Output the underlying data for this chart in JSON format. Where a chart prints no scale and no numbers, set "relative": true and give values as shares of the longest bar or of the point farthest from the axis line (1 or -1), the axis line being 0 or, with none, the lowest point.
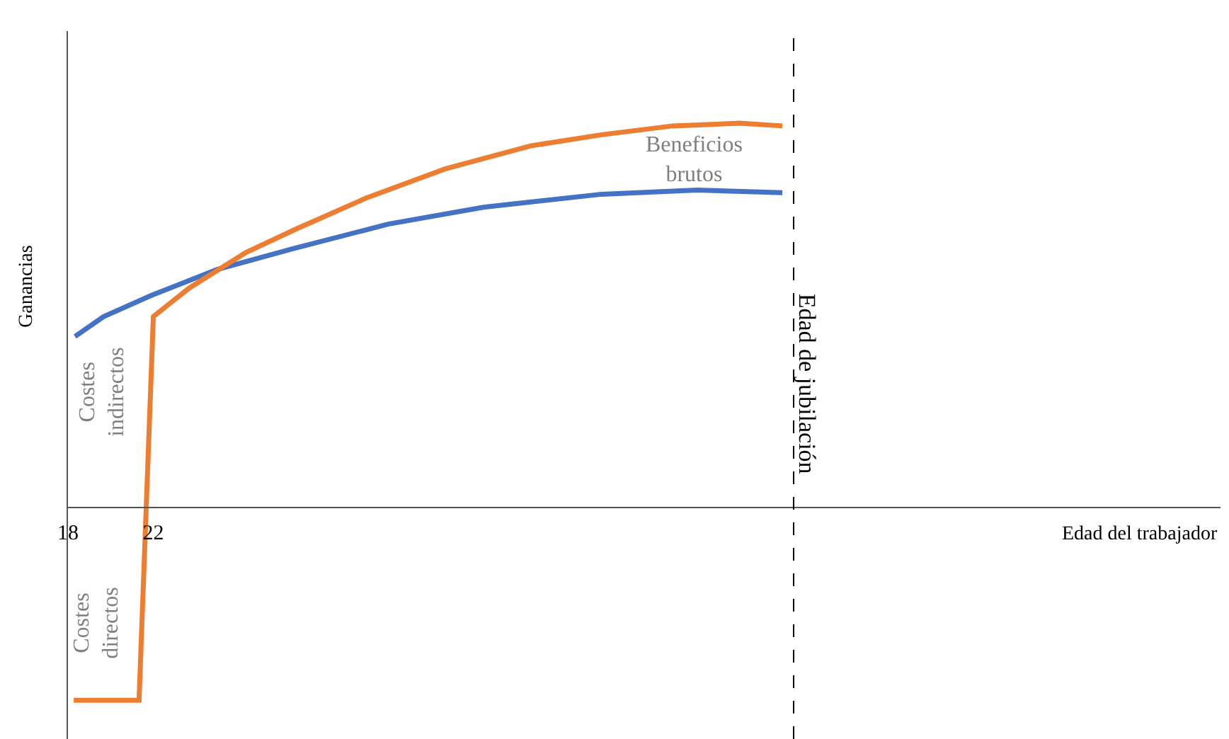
{
  "chart_data": {
    "type": "line",
    "relative": true,
    "xlabel": "Edad del trabajador",
    "ylabel": "Ganancias",
    "xlim": [
      18,
      72
    ],
    "xticks": [
      18,
      22
    ],
    "grid": false,
    "marker": "none",
    "line_style": "solid",
    "series": [
      {
        "color": "#4472c4",
        "x": [
          18.33,
          19.67,
          21.93,
          25,
          28.6,
          33,
          37.47,
          43,
          47.47,
          51.47
        ],
        "values": [
          0.444,
          0.496,
          0.552,
          0.619,
          0.674,
          0.737,
          0.781,
          0.815,
          0.826,
          0.819
        ]
      },
      {
        "color": "#ed7d31",
        "x": [
          18.27,
          21.33,
          22,
          23.67,
          26.33,
          28.6,
          31.93,
          35.67,
          39.67,
          43,
          46.33,
          49.47,
          51.47
        ],
        "values": [
          -0.504,
          -0.504,
          0.496,
          0.57,
          0.663,
          0.722,
          0.804,
          0.881,
          0.941,
          0.97,
          0.993,
          1,
          0.993
        ]
      }
    ],
    "ref_lines": [
      {
        "axis": "x",
        "value": 52,
        "label": "Edad de jubilación",
        "color": "#000000",
        "line_style": "dashed"
      }
    ],
    "annotations": [
      "Beneficios\nbrutos",
      "Costes\nindirectos",
      "Costes\ndirectos"
    ]
  }
}
